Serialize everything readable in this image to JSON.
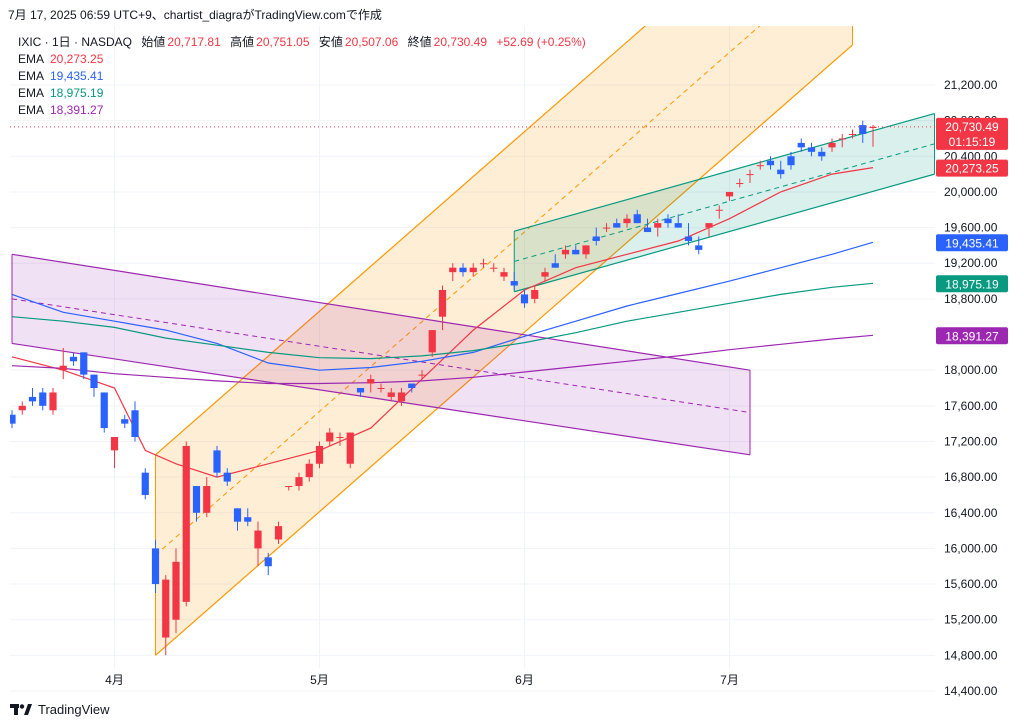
{
  "header": {
    "timestamp": "7月 17, 2025 06:59 UTC+9、chartist_diagraがTradingView.comで作成"
  },
  "legend": {
    "symbol": "IXIC · 1日 · NASDAQ",
    "open_label": "始値",
    "open": "20,717.81",
    "high_label": "高値",
    "high": "20,751.05",
    "low_label": "安値",
    "low": "20,507.06",
    "close_label": "終値",
    "close": "20,730.49",
    "change": "+52.69 (+0.25%)",
    "emas": [
      {
        "label": "EMA",
        "value": "20,273.25",
        "color": "#f23645"
      },
      {
        "label": "EMA",
        "value": "19,435.41",
        "color": "#2962ff"
      },
      {
        "label": "EMA",
        "value": "18,975.19",
        "color": "#089981"
      },
      {
        "label": "EMA",
        "value": "18,391.27",
        "color": "#9c27b0"
      }
    ]
  },
  "price_tags": {
    "last_price": "20,730.49",
    "countdown": "01:15:19",
    "ema1": "20,273.25",
    "ema2": "19,435.41",
    "ema3": "18,975.19",
    "ema4": "18,391.27"
  },
  "footer": {
    "logo_text": "TradingView"
  },
  "colors": {
    "up": "#f23645",
    "down": "#2962ff",
    "ema1": "#f23645",
    "ema2": "#2962ff",
    "ema3": "#089981",
    "ema4": "#9c27b0",
    "orange_channel": "#ff9800",
    "green_channel": "#089981",
    "purple_channel": "#9c27b0"
  },
  "chart_data": {
    "type": "candlestick",
    "symbol": "IXIC",
    "interval": "1D",
    "y_ticks": [
      "21,200.00",
      "20,800.00",
      "20,400.00",
      "20,000.00",
      "19,600.00",
      "19,200.00",
      "18,800.00",
      "18,000.00",
      "17,600.00",
      "17,200.00",
      "16,800.00",
      "16,400.00",
      "16,000.00",
      "15,600.00",
      "15,200.00",
      "14,800.00",
      "14,400.00"
    ],
    "y_tick_values": [
      21200,
      20800,
      20400,
      20000,
      19600,
      19200,
      18800,
      18000,
      17600,
      17200,
      16800,
      16400,
      16000,
      15600,
      15200,
      14800,
      14400
    ],
    "x_ticks": [
      "4月",
      "5月",
      "6月",
      "7月"
    ],
    "x_tick_bar_index": [
      10,
      30,
      50,
      70
    ],
    "ylim": [
      14200,
      21650
    ],
    "ohlc": [
      [
        17500,
        17550,
        17350,
        17400
      ],
      [
        17550,
        17650,
        17500,
        17600
      ],
      [
        17700,
        17800,
        17600,
        17650
      ],
      [
        17750,
        17800,
        17550,
        17600
      ],
      [
        17550,
        17800,
        17500,
        17750
      ],
      [
        18000,
        18250,
        17900,
        18050
      ],
      [
        18150,
        18200,
        18050,
        18100
      ],
      [
        18200,
        18200,
        17900,
        17950
      ],
      [
        17950,
        17950,
        17700,
        17800
      ],
      [
        17750,
        17750,
        17300,
        17350
      ],
      [
        17100,
        17250,
        16900,
        17250
      ],
      [
        17450,
        17500,
        17350,
        17400
      ],
      [
        17550,
        17650,
        17200,
        17250
      ],
      [
        16850,
        16900,
        16550,
        16600
      ],
      [
        16000,
        16100,
        15500,
        15600
      ],
      [
        15000,
        15700,
        14800,
        15650
      ],
      [
        15200,
        16000,
        15050,
        15850
      ],
      [
        15400,
        17200,
        15350,
        17150
      ],
      [
        16700,
        16700,
        16300,
        16400
      ],
      [
        16400,
        16800,
        16350,
        16700
      ],
      [
        17100,
        17150,
        16800,
        16850
      ],
      [
        16850,
        16900,
        16700,
        16750
      ],
      [
        16450,
        16450,
        16200,
        16300
      ],
      [
        16350,
        16450,
        16250,
        16300
      ],
      [
        16000,
        16300,
        15800,
        16200
      ],
      [
        15900,
        15950,
        15700,
        15800
      ],
      [
        16100,
        16300,
        16050,
        16250
      ],
      [
        16700,
        16700,
        16650,
        16700
      ],
      [
        16700,
        16850,
        16650,
        16800
      ],
      [
        16800,
        17000,
        16750,
        16950
      ],
      [
        16950,
        17200,
        16900,
        17150
      ],
      [
        17200,
        17350,
        17150,
        17300
      ],
      [
        17250,
        17300,
        17150,
        17250
      ],
      [
        16950,
        17300,
        16900,
        17300
      ],
      [
        17800,
        17800,
        17700,
        17750
      ],
      [
        17850,
        17950,
        17750,
        17900
      ],
      [
        17800,
        17850,
        17750,
        17800
      ],
      [
        17700,
        17800,
        17650,
        17750
      ],
      [
        17650,
        17800,
        17600,
        17750
      ],
      [
        17850,
        17850,
        17750,
        17800
      ],
      [
        17950,
        18000,
        17900,
        17950
      ],
      [
        18200,
        18450,
        18150,
        18450
      ],
      [
        18600,
        18950,
        18450,
        18900
      ],
      [
        19100,
        19200,
        19000,
        19150
      ],
      [
        19150,
        19200,
        19050,
        19100
      ],
      [
        19100,
        19200,
        19050,
        19150
      ],
      [
        19200,
        19250,
        19150,
        19200
      ],
      [
        19150,
        19200,
        19100,
        19150
      ],
      [
        19050,
        19150,
        19000,
        19100
      ],
      [
        19000,
        19100,
        18900,
        18950
      ],
      [
        18850,
        18900,
        18700,
        18750
      ],
      [
        18800,
        18950,
        18750,
        18900
      ],
      [
        19050,
        19150,
        19000,
        19100
      ],
      [
        19200,
        19300,
        19150,
        19150
      ],
      [
        19300,
        19400,
        19250,
        19350
      ],
      [
        19350,
        19400,
        19300,
        19300
      ],
      [
        19300,
        19400,
        19250,
        19400
      ],
      [
        19500,
        19600,
        19400,
        19450
      ],
      [
        19600,
        19650,
        19550,
        19600
      ],
      [
        19650,
        19700,
        19600,
        19600
      ],
      [
        19650,
        19750,
        19600,
        19700
      ],
      [
        19750,
        19800,
        19650,
        19650
      ],
      [
        19600,
        19700,
        19550,
        19550
      ],
      [
        19600,
        19700,
        19500,
        19650
      ],
      [
        19700,
        19750,
        19600,
        19650
      ],
      [
        19650,
        19750,
        19600,
        19600
      ],
      [
        19500,
        19650,
        19400,
        19450
      ],
      [
        19400,
        19500,
        19300,
        19350
      ],
      [
        19600,
        19650,
        19500,
        19650
      ],
      [
        19800,
        19850,
        19700,
        19800
      ],
      [
        19950,
        20000,
        19900,
        20000
      ],
      [
        20100,
        20150,
        20050,
        20100
      ],
      [
        20200,
        20250,
        20100,
        20200
      ],
      [
        20300,
        20350,
        20250,
        20300
      ],
      [
        20350,
        20400,
        20250,
        20300
      ],
      [
        20250,
        20350,
        20150,
        20200
      ],
      [
        20400,
        20450,
        20250,
        20300
      ],
      [
        20550,
        20600,
        20450,
        20500
      ],
      [
        20500,
        20550,
        20400,
        20450
      ],
      [
        20450,
        20500,
        20350,
        20400
      ],
      [
        20500,
        20600,
        20450,
        20550
      ],
      [
        20600,
        20650,
        20500,
        20600
      ],
      [
        20650,
        20700,
        20600,
        20650
      ],
      [
        20750,
        20800,
        20550,
        20650
      ],
      [
        20717.81,
        20751.05,
        20507.06,
        20730.49
      ]
    ],
    "series": [
      {
        "name": "EMA",
        "color": "#f23645",
        "x": [
          0,
          5,
          10,
          13,
          16,
          20,
          25,
          30,
          35,
          40,
          45,
          50,
          55,
          60,
          65,
          70,
          75,
          80,
          84
        ],
        "y": [
          18150,
          18000,
          17800,
          17100,
          16950,
          16800,
          16950,
          17100,
          17350,
          17900,
          18450,
          18900,
          19150,
          19300,
          19450,
          19700,
          20000,
          20200,
          20273.25
        ]
      },
      {
        "name": "EMA",
        "color": "#2962ff",
        "x": [
          0,
          5,
          10,
          15,
          20,
          25,
          30,
          35,
          40,
          45,
          50,
          55,
          60,
          65,
          70,
          75,
          80,
          84
        ],
        "y": [
          18850,
          18650,
          18550,
          18450,
          18300,
          18080,
          18000,
          18030,
          18100,
          18200,
          18380,
          18550,
          18720,
          18860,
          19000,
          19150,
          19300,
          19435.41
        ]
      },
      {
        "name": "EMA",
        "color": "#089981",
        "x": [
          0,
          5,
          10,
          15,
          20,
          25,
          30,
          35,
          40,
          45,
          50,
          55,
          60,
          65,
          70,
          75,
          80,
          84
        ],
        "y": [
          18600,
          18550,
          18480,
          18360,
          18280,
          18200,
          18140,
          18130,
          18160,
          18220,
          18310,
          18420,
          18550,
          18650,
          18750,
          18850,
          18930,
          18975.19
        ]
      },
      {
        "name": "EMA",
        "color": "#9c27b0",
        "x": [
          0,
          5,
          10,
          15,
          20,
          25,
          30,
          35,
          40,
          45,
          50,
          55,
          60,
          65,
          70,
          75,
          80,
          84
        ],
        "y": [
          18050,
          18020,
          17960,
          17920,
          17880,
          17850,
          17850,
          17860,
          17880,
          17920,
          17980,
          18040,
          18100,
          18160,
          18230,
          18290,
          18350,
          18391.27
        ]
      }
    ],
    "channels": [
      {
        "name": "orange",
        "color": "#ff9800",
        "lower": [
          [
            14,
            14800
          ],
          [
            82,
            21650
          ]
        ],
        "upper": [
          [
            14,
            17050
          ],
          [
            82,
            23900
          ]
        ]
      },
      {
        "name": "green",
        "color": "#089981",
        "lower": [
          [
            49,
            18880
          ],
          [
            90,
            20200
          ]
        ],
        "upper": [
          [
            49,
            19560
          ],
          [
            90,
            20880
          ]
        ]
      },
      {
        "name": "purple",
        "color": "#9c27b0",
        "lower": [
          [
            0,
            18300
          ],
          [
            72,
            17050
          ]
        ],
        "upper": [
          [
            0,
            19300
          ],
          [
            72,
            18000
          ]
        ]
      }
    ],
    "last_price": 20730.49
  }
}
